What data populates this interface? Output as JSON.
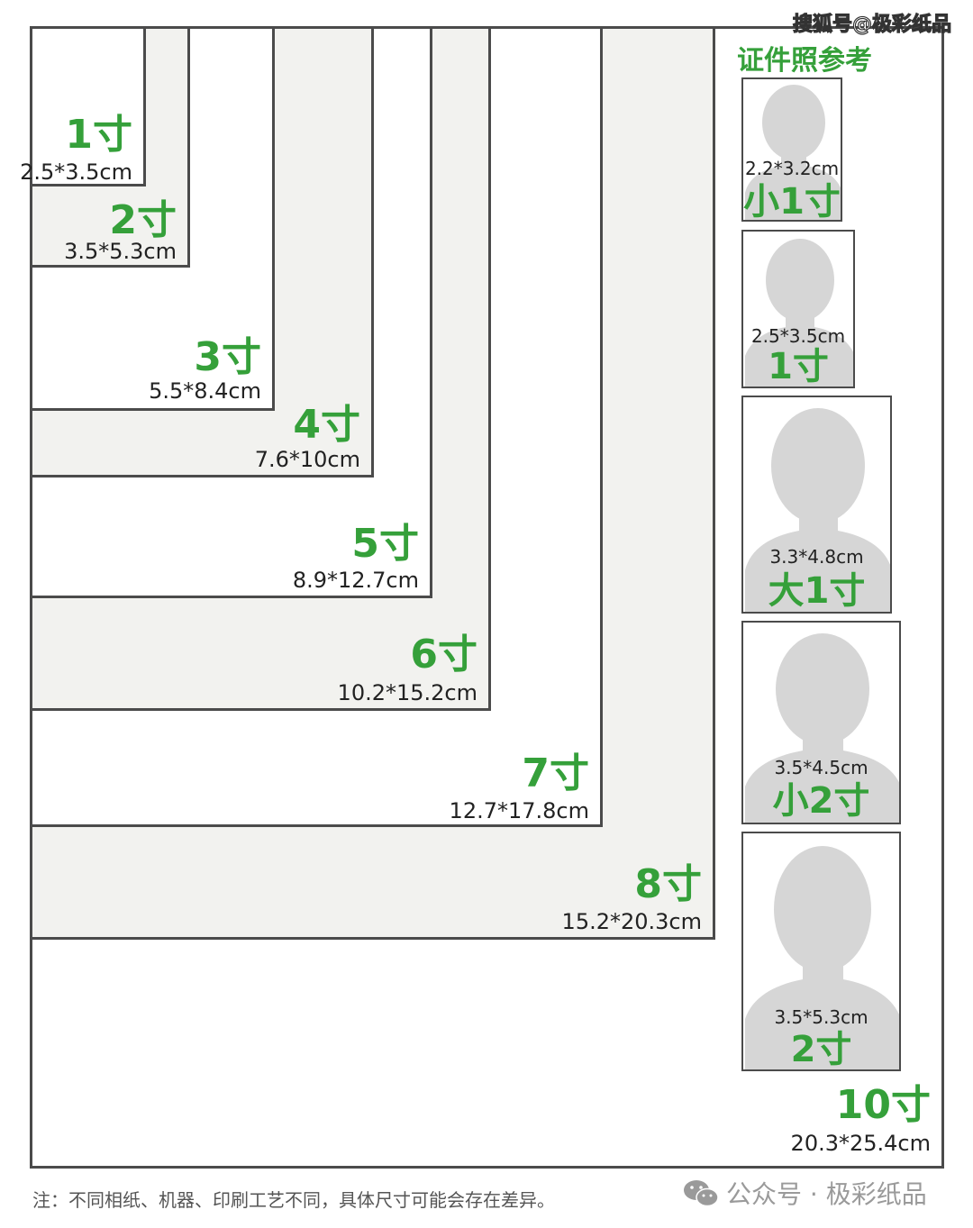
{
  "watermark_top": "搜狐号@极彩纸品",
  "reference_title": "证件照参考",
  "print_sizes": [
    {
      "name": "1寸",
      "dims": "2.5*3.5cm"
    },
    {
      "name": "2寸",
      "dims": "3.5*5.3cm"
    },
    {
      "name": "3寸",
      "dims": "5.5*8.4cm"
    },
    {
      "name": "4寸",
      "dims": "7.6*10cm"
    },
    {
      "name": "5寸",
      "dims": "8.9*12.7cm"
    },
    {
      "name": "6寸",
      "dims": "10.2*15.2cm"
    },
    {
      "name": "7寸",
      "dims": "12.7*17.8cm"
    },
    {
      "name": "8寸",
      "dims": "15.2*20.3cm"
    },
    {
      "name": "10寸",
      "dims": "20.3*25.4cm"
    }
  ],
  "id_photos": [
    {
      "name": "小1寸",
      "dims": "2.2*3.2cm"
    },
    {
      "name": "1寸",
      "dims": "2.5*3.5cm"
    },
    {
      "name": "大1寸",
      "dims": "3.3*4.8cm"
    },
    {
      "name": "小2寸",
      "dims": "3.5*4.5cm"
    },
    {
      "name": "2寸",
      "dims": "3.5*5.3cm"
    }
  ],
  "footer": {
    "note": "注：不同相纸、机器、印刷工艺不同，具体尺寸可能会存在差异。",
    "brand": "公众号 · 极彩纸品"
  },
  "colors": {
    "accent_green": "#35a03a",
    "border": "#4b4b4b",
    "paper_light": "#f2f2ef",
    "silhouette": "#d6d6d6"
  }
}
